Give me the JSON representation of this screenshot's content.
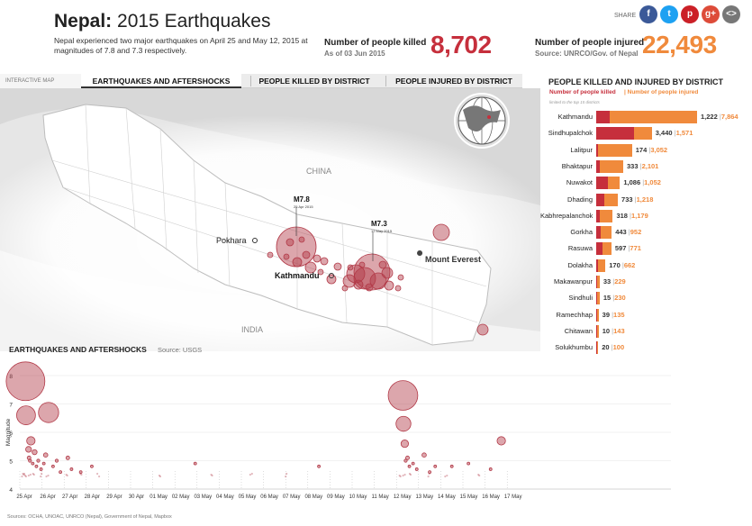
{
  "header": {
    "title_bold": "Nepal:",
    "title_rest": " 2015 Earthquakes",
    "subtitle": "Nepal experienced two major earthquakes on April 25 and May 12, 2015 at magnitudes of 7.8 and 7.3 respectively."
  },
  "stats": {
    "killed_label": "Number of people killed",
    "killed_sub": "As of 03 Jun 2015",
    "killed_value": "8,702",
    "injured_label": "Number of people injured",
    "injured_sub": "Source: UNRCO/Gov. of Nepal",
    "injured_value": "22,493",
    "killed_color": "#c62f3c",
    "injured_color": "#f08a3c"
  },
  "share": {
    "label": "SHARE",
    "buttons": [
      {
        "name": "facebook",
        "glyph": "f",
        "color": "#3b5998"
      },
      {
        "name": "twitter",
        "glyph": "t",
        "color": "#1da1f2"
      },
      {
        "name": "pinterest",
        "glyph": "p",
        "color": "#cb2027"
      },
      {
        "name": "google-plus",
        "glyph": "g+",
        "color": "#dd4b39"
      },
      {
        "name": "embed",
        "glyph": "<>",
        "color": "#777777"
      }
    ]
  },
  "tabs": {
    "interactive_label": "INTERACTIVE MAP",
    "items": [
      {
        "label": "EARTHQUAKES AND AFTERSHOCKS",
        "active": true
      },
      {
        "label": "PEOPLE KILLED BY DISTRICT",
        "active": false
      },
      {
        "label": "PEOPLE INJURED BY DISTRICT",
        "active": false
      }
    ]
  },
  "map": {
    "labels": {
      "china": "CHINA",
      "india": "INDIA",
      "pokhara": "Pokhara",
      "kathmandu": "Kathmandu",
      "everest": "Mount Everest",
      "m78": "M7.8",
      "m78_date": "25 Apr 2015",
      "m73": "M7.3",
      "m73_date": "12 May 2015"
    }
  },
  "district_chart": {
    "title": "PEOPLE KILLED AND INJURED BY DISTRICT",
    "legend_killed": "Number of people killed",
    "legend_injured": "Number of people injured",
    "note": "limited to the top 15 districts",
    "districts": [
      {
        "name": "Kathmandu",
        "killed": 1222,
        "injured": 7864,
        "killed_label": "1,222",
        "injured_label": "7,864"
      },
      {
        "name": "Sindhupalchok",
        "killed": 3440,
        "injured": 1571,
        "killed_label": "3,440",
        "injured_label": "1,571"
      },
      {
        "name": "Lalitpur",
        "killed": 174,
        "injured": 3052,
        "killed_label": "174",
        "injured_label": "3,052"
      },
      {
        "name": "Bhaktapur",
        "killed": 333,
        "injured": 2101,
        "killed_label": "333",
        "injured_label": "2,101"
      },
      {
        "name": "Nuwakot",
        "killed": 1086,
        "injured": 1052,
        "killed_label": "1,086",
        "injured_label": "1,052"
      },
      {
        "name": "Dhading",
        "killed": 733,
        "injured": 1218,
        "killed_label": "733",
        "injured_label": "1,218"
      },
      {
        "name": "Kabhrepalanchok",
        "killed": 318,
        "injured": 1179,
        "killed_label": "318",
        "injured_label": "1,179"
      },
      {
        "name": "Gorkha",
        "killed": 443,
        "injured": 952,
        "killed_label": "443",
        "injured_label": "952"
      },
      {
        "name": "Rasuwa",
        "killed": 597,
        "injured": 771,
        "killed_label": "597",
        "injured_label": "771"
      },
      {
        "name": "Dolakha",
        "killed": 170,
        "injured": 662,
        "killed_label": "170",
        "injured_label": "662"
      },
      {
        "name": "Makawanpur",
        "killed": 33,
        "injured": 229,
        "killed_label": "33",
        "injured_label": "229"
      },
      {
        "name": "Sindhuli",
        "killed": 15,
        "injured": 230,
        "killed_label": "15",
        "injured_label": "230"
      },
      {
        "name": "Ramechhap",
        "killed": 39,
        "injured": 135,
        "killed_label": "39",
        "injured_label": "135"
      },
      {
        "name": "Chitawan",
        "killed": 10,
        "injured": 143,
        "killed_label": "10",
        "injured_label": "143"
      },
      {
        "name": "Solukhumbu",
        "killed": 20,
        "injured": 100,
        "killed_label": "20",
        "injured_label": "100"
      }
    ]
  },
  "chart_data": {
    "type": "scatter",
    "title": "EARTHQUAKES AND AFTERSHOCKS",
    "source": "Source: USGS",
    "ylabel": "Magnitude",
    "ylim": [
      4,
      8
    ],
    "yticks": [
      "4",
      "5",
      "6",
      "7",
      "8"
    ],
    "xticks": [
      "25 Apr",
      "26 Apr",
      "27 Apr",
      "28 Apr",
      "29 Apr",
      "30 Apr",
      "01 May",
      "02 May",
      "03 May",
      "04 May",
      "05 May",
      "06 May",
      "07 May",
      "08 May",
      "09 May",
      "10 May",
      "11 May",
      "12 May",
      "13 May",
      "14 May",
      "15 May",
      "16 May",
      "17 May"
    ],
    "point_color": "#b23a48",
    "points": [
      {
        "x": "2015-04-25 06:11",
        "y": 7.8
      },
      {
        "x": "2015-04-25 06:45",
        "y": 6.6
      },
      {
        "x": "2015-04-25 09:30",
        "y": 5.4
      },
      {
        "x": "2015-04-25 10:00",
        "y": 5.1
      },
      {
        "x": "2015-04-25 11:00",
        "y": 5.0
      },
      {
        "x": "2015-04-25 12:00",
        "y": 5.7
      },
      {
        "x": "2015-04-25 14:00",
        "y": 4.9
      },
      {
        "x": "2015-04-25 16:00",
        "y": 5.3
      },
      {
        "x": "2015-04-25 18:00",
        "y": 4.8
      },
      {
        "x": "2015-04-25 20:00",
        "y": 5.0
      },
      {
        "x": "2015-04-25 23:00",
        "y": 4.7
      },
      {
        "x": "2015-04-26 02:00",
        "y": 4.9
      },
      {
        "x": "2015-04-26 04:00",
        "y": 5.2
      },
      {
        "x": "2015-04-26 07:09",
        "y": 6.7
      },
      {
        "x": "2015-04-26 12:00",
        "y": 4.8
      },
      {
        "x": "2015-04-26 16:00",
        "y": 5.0
      },
      {
        "x": "2015-04-26 20:00",
        "y": 4.6
      },
      {
        "x": "2015-04-27 04:00",
        "y": 5.1
      },
      {
        "x": "2015-04-27 08:00",
        "y": 4.7
      },
      {
        "x": "2015-04-27 18:00",
        "y": 4.6
      },
      {
        "x": "2015-04-28 06:00",
        "y": 4.8
      },
      {
        "x": "2015-05-02 22:00",
        "y": 4.9
      },
      {
        "x": "2015-05-08 12:00",
        "y": 4.8
      },
      {
        "x": "2015-05-12 07:05",
        "y": 7.3
      },
      {
        "x": "2015-05-12 07:36",
        "y": 6.3
      },
      {
        "x": "2015-05-12 09:00",
        "y": 5.6
      },
      {
        "x": "2015-05-12 10:00",
        "y": 5.0
      },
      {
        "x": "2015-05-12 12:00",
        "y": 5.1
      },
      {
        "x": "2015-05-12 14:00",
        "y": 4.8
      },
      {
        "x": "2015-05-12 18:00",
        "y": 4.9
      },
      {
        "x": "2015-05-12 22:00",
        "y": 4.7
      },
      {
        "x": "2015-05-13 06:00",
        "y": 5.2
      },
      {
        "x": "2015-05-13 12:00",
        "y": 4.6
      },
      {
        "x": "2015-05-13 18:00",
        "y": 4.8
      },
      {
        "x": "2015-05-14 12:00",
        "y": 4.8
      },
      {
        "x": "2015-05-15 06:00",
        "y": 4.9
      },
      {
        "x": "2015-05-16 06:00",
        "y": 4.7
      },
      {
        "x": "2015-05-16 17:34",
        "y": 5.7
      }
    ]
  },
  "footer": {
    "sources": "Sources: OCHA, UNOAC, UNRCO (Nepal), Government of Nepal, Mapbox"
  }
}
